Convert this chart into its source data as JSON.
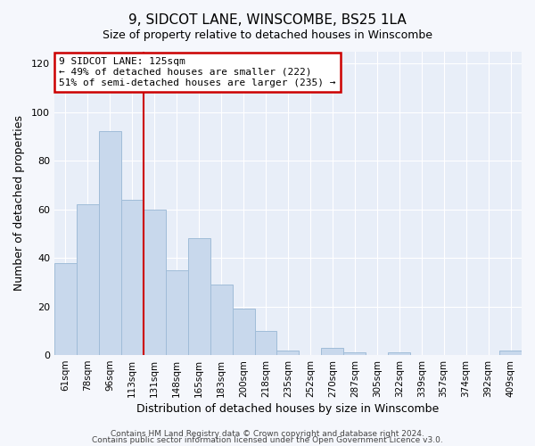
{
  "title": "9, SIDCOT LANE, WINSCOMBE, BS25 1LA",
  "subtitle": "Size of property relative to detached houses in Winscombe",
  "xlabel": "Distribution of detached houses by size in Winscombe",
  "ylabel": "Number of detached properties",
  "bar_color": "#c8d8ec",
  "bar_edgecolor": "#a0bcd8",
  "background_color": "#e8eef8",
  "grid_color": "#ffffff",
  "fig_facecolor": "#f5f7fc",
  "categories": [
    "61sqm",
    "78sqm",
    "96sqm",
    "113sqm",
    "131sqm",
    "148sqm",
    "165sqm",
    "183sqm",
    "200sqm",
    "218sqm",
    "235sqm",
    "252sqm",
    "270sqm",
    "287sqm",
    "305sqm",
    "322sqm",
    "339sqm",
    "357sqm",
    "374sqm",
    "392sqm",
    "409sqm"
  ],
  "values": [
    38,
    62,
    92,
    64,
    60,
    35,
    48,
    29,
    19,
    10,
    2,
    0,
    3,
    1,
    0,
    1,
    0,
    0,
    0,
    0,
    2
  ],
  "ylim": [
    0,
    125
  ],
  "yticks": [
    0,
    20,
    40,
    60,
    80,
    100,
    120
  ],
  "vline_index": 4,
  "vline_color": "#cc0000",
  "annotation_text": "9 SIDCOT LANE: 125sqm\n← 49% of detached houses are smaller (222)\n51% of semi-detached houses are larger (235) →",
  "annotation_box_edgecolor": "#cc0000",
  "footer_line1": "Contains HM Land Registry data © Crown copyright and database right 2024.",
  "footer_line2": "Contains public sector information licensed under the Open Government Licence v3.0."
}
